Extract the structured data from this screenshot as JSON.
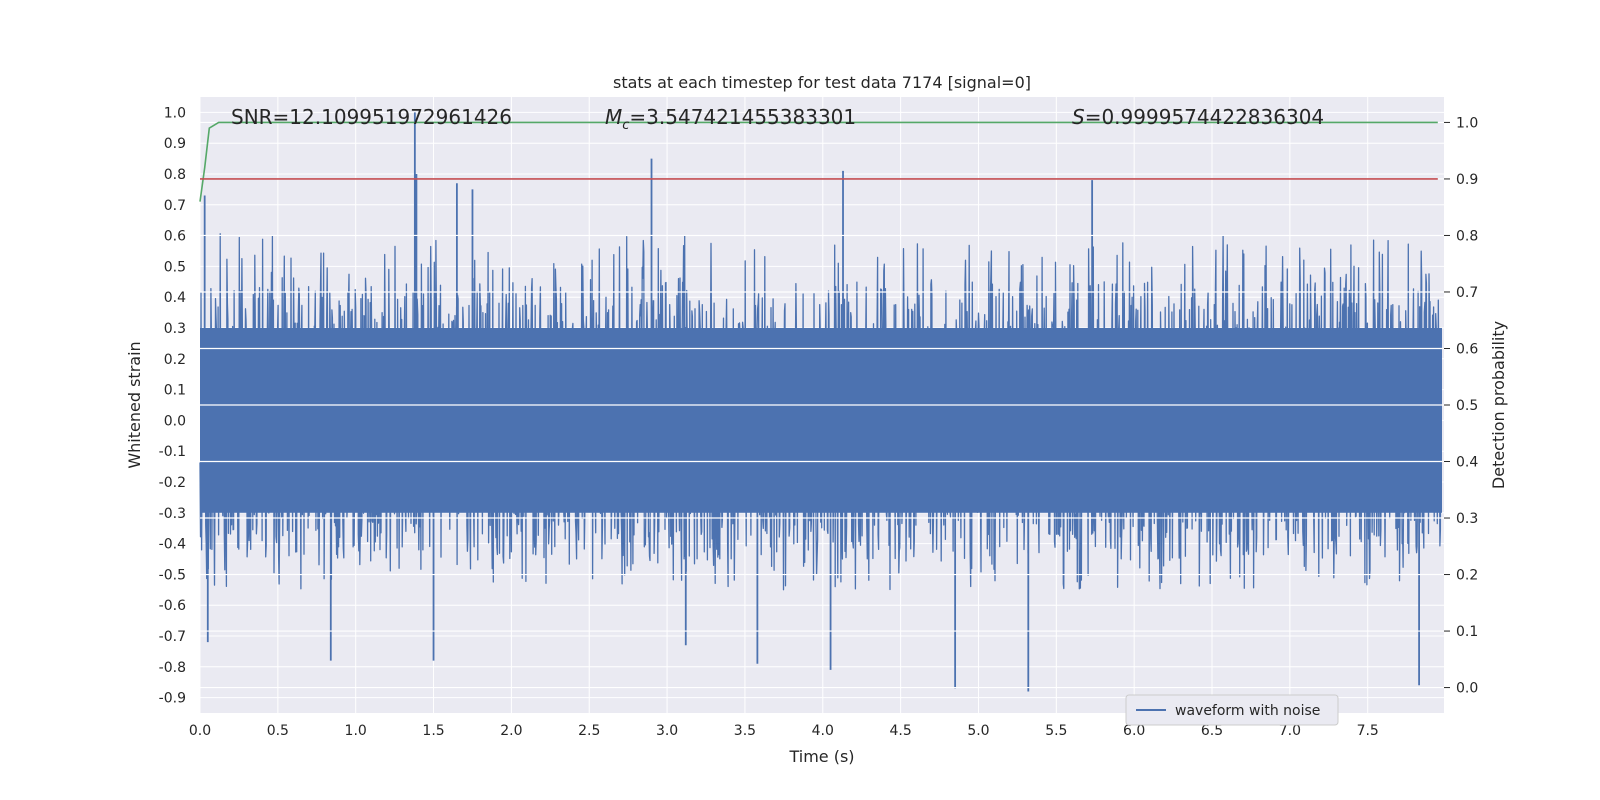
{
  "chart_data": {
    "type": "line",
    "title": "stats at each timestep for test data 7174 [signal=0]",
    "xlabel": "Time (s)",
    "ylabel": "Whitened strain",
    "y2label": "Detection probability",
    "xlim": [
      0.0,
      7.99
    ],
    "ylim": [
      -0.95,
      1.05
    ],
    "y2lim": [
      -0.045,
      1.045
    ],
    "x_ticks": [
      "0.0",
      "0.5",
      "1.0",
      "1.5",
      "2.0",
      "2.5",
      "3.0",
      "3.5",
      "4.0",
      "4.5",
      "5.0",
      "5.5",
      "6.0",
      "6.5",
      "7.0",
      "7.5"
    ],
    "y_ticks": [
      "1.0",
      "0.9",
      "0.8",
      "0.7",
      "0.6",
      "0.5",
      "0.4",
      "0.3",
      "0.2",
      "0.1",
      "0.0",
      "-0.1",
      "-0.2",
      "-0.3",
      "-0.4",
      "-0.5",
      "-0.6",
      "-0.7",
      "-0.8",
      "-0.9"
    ],
    "y2_ticks": [
      "1.0",
      "0.9",
      "0.8",
      "0.7",
      "0.6",
      "0.5",
      "0.4",
      "0.3",
      "0.2",
      "0.1",
      "0.0"
    ],
    "grid": true,
    "legend_position": "lower-right",
    "annotations": {
      "snr": "SNR=12.109951972961426",
      "mc_symbol": "M",
      "mc_sub": "c",
      "mc_value": "=3.547421455383301",
      "s_symbol": "S",
      "s_value": "=0.9999574422836304"
    },
    "series": [
      {
        "name": "waveform with noise",
        "axis": "left",
        "color": "#4c72b0",
        "style": "dense noise oscillating between about -0.5 and 0.5 with spikes",
        "envelope_upper": [
          0.62,
          0.6,
          0.58,
          0.62,
          0.6,
          0.6,
          0.6,
          0.6,
          0.6,
          0.58,
          0.55,
          0.6,
          0.62,
          0.6,
          0.58,
          0.6
        ],
        "envelope_lower": [
          -0.55,
          -0.55,
          -0.55,
          -0.55,
          -0.55,
          -0.55,
          -0.55,
          -0.55,
          -0.55,
          -0.55,
          -0.55,
          -0.55,
          -0.55,
          -0.55,
          -0.55,
          -0.55
        ],
        "spikes": [
          [
            0.03,
            0.73
          ],
          [
            0.05,
            -0.72
          ],
          [
            0.84,
            -0.78
          ],
          [
            1.38,
            1.0
          ],
          [
            1.39,
            0.8
          ],
          [
            1.5,
            -0.78
          ],
          [
            1.65,
            0.77
          ],
          [
            1.75,
            0.75
          ],
          [
            2.9,
            0.85
          ],
          [
            3.12,
            -0.73
          ],
          [
            3.58,
            -0.79
          ],
          [
            4.05,
            -0.81
          ],
          [
            4.13,
            0.81
          ],
          [
            4.85,
            -0.87
          ],
          [
            5.32,
            -0.88
          ],
          [
            5.73,
            0.78
          ],
          [
            7.83,
            -0.86
          ]
        ]
      },
      {
        "name": "",
        "axis": "right",
        "color": "#55a868",
        "x": [
          0.0,
          0.03,
          0.06,
          0.12,
          0.2,
          7.95
        ],
        "values": [
          0.86,
          0.92,
          0.99,
          1.0,
          1.0,
          1.0
        ]
      },
      {
        "name": "",
        "axis": "right",
        "color": "#c44e52",
        "x": [
          0.0,
          7.95
        ],
        "values": [
          0.9,
          0.9
        ]
      }
    ]
  }
}
